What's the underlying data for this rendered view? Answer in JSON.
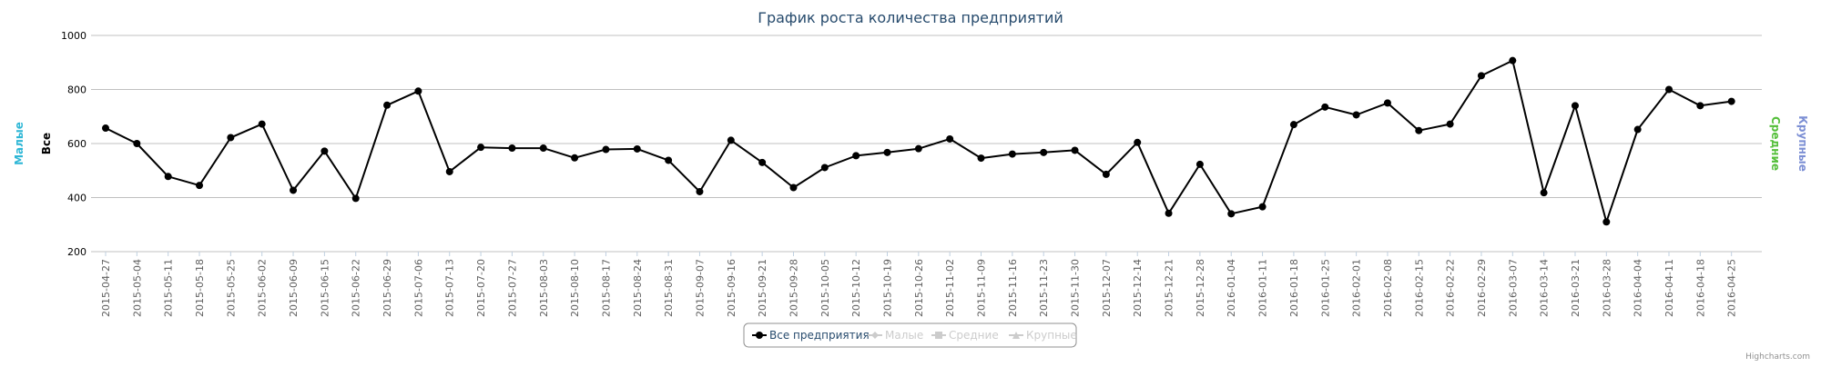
{
  "chart_data": {
    "type": "line",
    "title": "График роста количества предприятий",
    "y_axes": [
      {
        "title": "Малые",
        "color": "#2fb7d6",
        "side": "left"
      },
      {
        "title": "Все",
        "color": "#000000",
        "side": "left"
      },
      {
        "title": "Средние",
        "color": "#55bf3b",
        "side": "right"
      },
      {
        "title": "Крупные",
        "color": "#7c8fd4",
        "side": "right"
      }
    ],
    "ylim": [
      200,
      1000
    ],
    "y_ticks": [
      "200",
      "400",
      "600",
      "800",
      "1000"
    ],
    "grid": true,
    "legend_position": "bottom-center",
    "legend": [
      {
        "label": "Все предприятия",
        "color": "#000000",
        "marker": "circle",
        "active": true
      },
      {
        "label": "Малые",
        "color": "#cccccc",
        "marker": "diamond",
        "active": false
      },
      {
        "label": "Средние",
        "color": "#cccccc",
        "marker": "square",
        "active": false
      },
      {
        "label": "Крупные",
        "color": "#cccccc",
        "marker": "triangle",
        "active": false
      }
    ],
    "x": [
      "2015-04-27",
      "2015-05-04",
      "2015-05-11",
      "2015-05-18",
      "2015-05-25",
      "2015-06-02",
      "2015-06-09",
      "2015-06-15",
      "2015-06-22",
      "2015-06-29",
      "2015-07-06",
      "2015-07-13",
      "2015-07-20",
      "2015-07-27",
      "2015-08-03",
      "2015-08-10",
      "2015-08-17",
      "2015-08-24",
      "2015-08-31",
      "2015-09-07",
      "2015-09-16",
      "2015-09-21",
      "2015-09-28",
      "2015-10-05",
      "2015-10-12",
      "2015-10-19",
      "2015-10-26",
      "2015-11-02",
      "2015-11-09",
      "2015-11-16",
      "2015-11-23",
      "2015-11-30",
      "2015-12-07",
      "2015-12-14",
      "2015-12-21",
      "2015-12-28",
      "2016-01-04",
      "2016-01-11",
      "2016-01-18",
      "2016-01-25",
      "2016-02-01",
      "2016-02-08",
      "2016-02-15",
      "2016-02-22",
      "2016-02-29",
      "2016-03-07",
      "2016-03-14",
      "2016-03-21",
      "2016-03-28",
      "2016-04-04",
      "2016-04-11",
      "2016-04-18",
      "2016-04-25"
    ],
    "series": [
      {
        "name": "Все предприятия",
        "color": "#000000",
        "values": [
          657,
          600,
          478,
          445,
          622,
          672,
          427,
          572,
          397,
          742,
          794,
          496,
          586,
          583,
          583,
          547,
          578,
          580,
          538,
          422,
          612,
          530,
          437,
          511,
          555,
          567,
          581,
          617,
          546,
          561,
          567,
          575,
          486,
          604,
          342,
          523,
          340,
          366,
          670,
          735,
          706,
          750,
          648,
          672,
          851,
          907,
          418,
          740,
          310,
          652,
          800,
          740,
          756
        ]
      }
    ]
  },
  "credits": "Highcharts.com"
}
